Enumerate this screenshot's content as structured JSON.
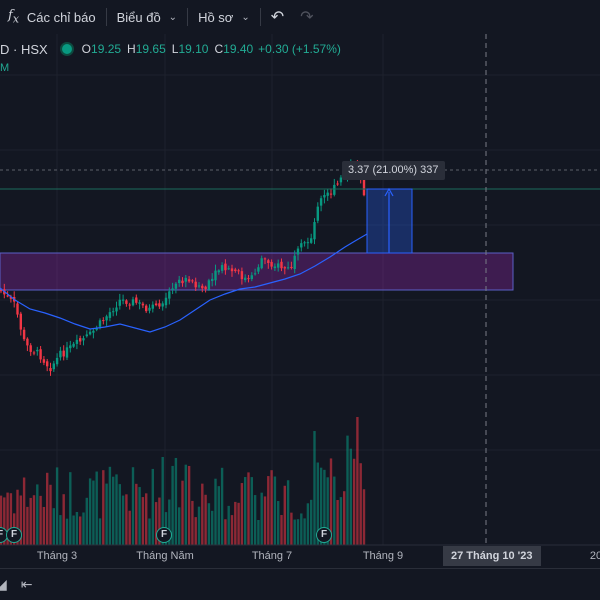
{
  "toolbar": {
    "indicators_label": "Các chỉ báo",
    "chart_label": "Biểu đồ",
    "profile_label": "Hồ sơ"
  },
  "legend": {
    "symbol": "D · HSX",
    "o_key": "O",
    "o_val": "19.25",
    "h_key": "H",
    "h_val": "19.65",
    "l_key": "L",
    "l_val": "19.10",
    "c_key": "C",
    "c_val": "19.40",
    "change": "+0.30 (+1.57%)",
    "ma_label": "M"
  },
  "measure": {
    "label": "3.37 (21.00%) 337"
  },
  "xaxis": {
    "labels": [
      "Tháng 3",
      "Tháng Năm",
      "Tháng 7",
      "Tháng 9",
      "20"
    ],
    "crosshair_date": "27 Tháng 10 '23"
  },
  "events": {
    "badge": "F"
  },
  "colors": {
    "up": "#089981",
    "down": "#f23645",
    "ma": "#2962ff",
    "zone": "#9c27b0",
    "measure": "#2962ff"
  },
  "chart_data": {
    "type": "candlestick",
    "ohlc_last": {
      "open": 19.25,
      "high": 19.65,
      "low": 19.1,
      "close": 19.4
    },
    "change_last": 0.3,
    "change_pct_last": 1.57,
    "measure": {
      "change": 3.37,
      "change_pct": 21.0,
      "bars": 337
    },
    "x_tick_labels": [
      "Tháng 3",
      "Tháng Năm",
      "Tháng 7",
      "Tháng 9",
      "27 Tháng 10 '23",
      "20"
    ]
  }
}
